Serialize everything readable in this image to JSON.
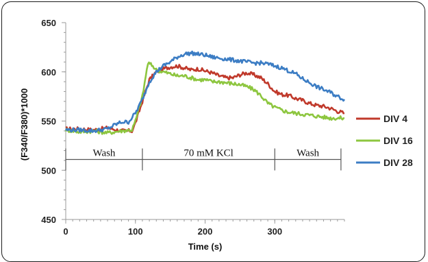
{
  "chart_data": {
    "type": "line",
    "title": "",
    "xlabel": "Time (s)",
    "ylabel": "(F340/F380)*1000",
    "xlim": [
      0,
      400
    ],
    "ylim": [
      450,
      650
    ],
    "x_ticks": [
      0,
      100,
      200,
      300
    ],
    "y_ticks": [
      450,
      500,
      550,
      600,
      650
    ],
    "grid": false,
    "legend_position": "right",
    "periods": [
      {
        "label": "Wash",
        "start": 0,
        "end": 110
      },
      {
        "label": "70 mM KCl",
        "start": 110,
        "end": 300
      },
      {
        "label": "Wash",
        "start": 300,
        "end": 395
      }
    ],
    "period_bar_y": 511,
    "series": [
      {
        "name": "DIV 4",
        "color": "#c0392b",
        "x": [
          0,
          20,
          40,
          60,
          80,
          95,
          100,
          110,
          120,
          130,
          140,
          150,
          160,
          170,
          180,
          190,
          200,
          210,
          220,
          230,
          240,
          250,
          260,
          270,
          280,
          290,
          300,
          310,
          320,
          330,
          340,
          350,
          360,
          370,
          380,
          390,
          400
        ],
        "y": [
          542,
          542,
          541,
          543,
          540,
          540,
          548,
          570,
          592,
          600,
          603,
          605,
          606,
          604,
          602,
          603,
          601,
          599,
          596,
          594,
          594,
          597,
          599,
          597,
          594,
          588,
          580,
          577,
          576,
          573,
          571,
          568,
          566,
          565,
          563,
          560,
          558
        ]
      },
      {
        "name": "DIV 16",
        "color": "#8dc63f",
        "x": [
          0,
          20,
          40,
          60,
          80,
          95,
          100,
          110,
          118,
          125,
          130,
          140,
          150,
          160,
          170,
          180,
          190,
          200,
          210,
          220,
          230,
          240,
          250,
          260,
          270,
          280,
          290,
          300,
          310,
          320,
          330,
          340,
          350,
          360,
          370,
          380,
          390,
          400
        ],
        "y": [
          541,
          539,
          540,
          538,
          540,
          541,
          550,
          575,
          609,
          606,
          602,
          600,
          598,
          596,
          596,
          594,
          592,
          592,
          590,
          590,
          589,
          588,
          587,
          585,
          582,
          576,
          568,
          564,
          561,
          559,
          558,
          557,
          556,
          555,
          554,
          553,
          553,
          553
        ]
      },
      {
        "name": "DIV 28",
        "color": "#3c7dc4",
        "x": [
          0,
          20,
          40,
          60,
          70,
          80,
          90,
          100,
          110,
          120,
          130,
          140,
          150,
          160,
          170,
          180,
          190,
          200,
          210,
          220,
          230,
          240,
          250,
          260,
          270,
          280,
          290,
          300,
          310,
          320,
          330,
          340,
          350,
          360,
          370,
          380,
          390,
          400
        ],
        "y": [
          541,
          541,
          540,
          542,
          546,
          549,
          549,
          558,
          572,
          590,
          600,
          606,
          610,
          615,
          618,
          619,
          618,
          617,
          615,
          614,
          613,
          612,
          611,
          610,
          609,
          609,
          608,
          606,
          604,
          601,
          598,
          593,
          589,
          585,
          582,
          579,
          575,
          572
        ]
      }
    ]
  }
}
